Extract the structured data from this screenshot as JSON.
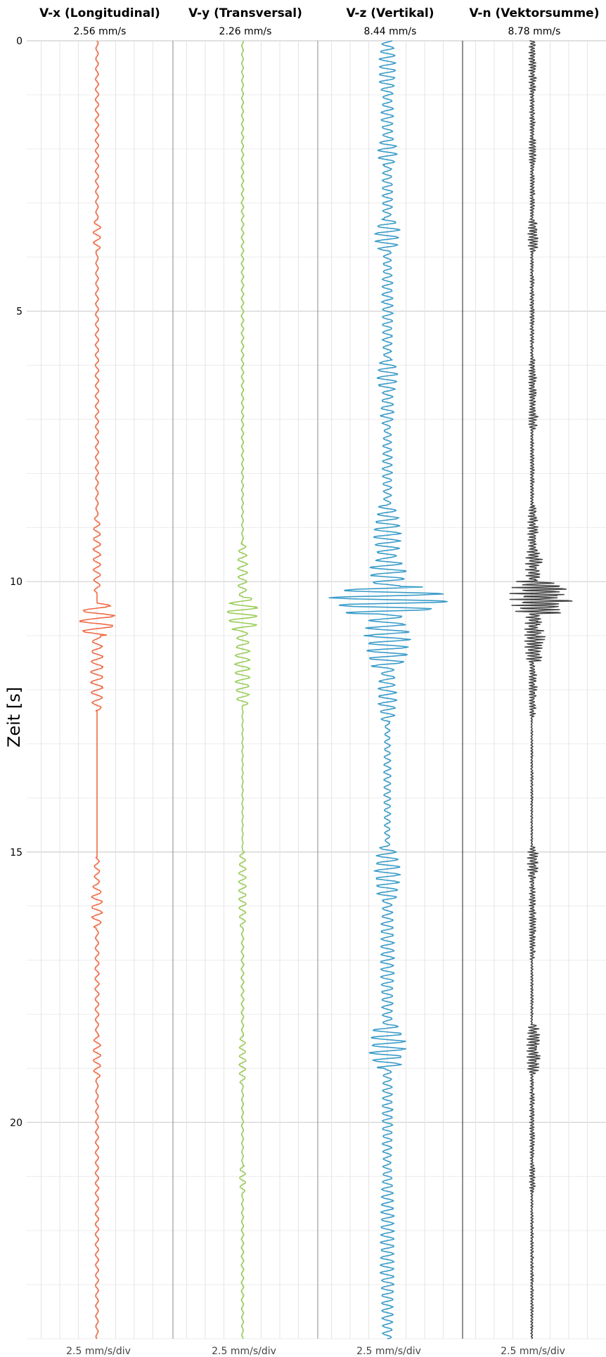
{
  "chart_data": {
    "type": "line",
    "ylabel": "Zeit [s]",
    "y_ticks": [
      "0",
      "5",
      "10",
      "15",
      "20"
    ],
    "ylim": [
      0,
      24
    ],
    "y_direction": "down",
    "grid": true,
    "scale_per_div": 2.5,
    "panels": [
      {
        "title": "V-x (Longitudinal)",
        "peak_label": "2.56 mm/s",
        "peak": 2.56,
        "scale_label": "2.5 mm/s/div",
        "color": "#f06a45",
        "signed": true,
        "baseline": 0.9,
        "bursts": [
          {
            "t": 0.0,
            "amp": 0.25,
            "dur": 3.3
          },
          {
            "t": 3.3,
            "amp": 0.55,
            "dur": 0.6
          },
          {
            "t": 3.9,
            "amp": 0.25,
            "dur": 4.9
          },
          {
            "t": 8.8,
            "amp": 0.55,
            "dur": 1.4
          },
          {
            "t": 10.4,
            "amp": 2.56,
            "dur": 0.6
          },
          {
            "t": 11.0,
            "amp": 0.9,
            "dur": 1.4
          },
          {
            "t": 15.1,
            "amp": 0.4,
            "dur": 0.6
          },
          {
            "t": 15.6,
            "amp": 0.8,
            "dur": 0.8
          },
          {
            "t": 16.4,
            "amp": 0.3,
            "dur": 2.0
          },
          {
            "t": 18.4,
            "amp": 0.55,
            "dur": 0.8
          },
          {
            "t": 19.2,
            "amp": 0.25,
            "dur": 4.8
          }
        ]
      },
      {
        "title": "V-y (Transversal)",
        "peak_label": "2.26 mm/s",
        "peak": 2.26,
        "scale_label": "2.5 mm/s/div",
        "color": "#9acd5a",
        "signed": true,
        "baseline": 0.9,
        "bursts": [
          {
            "t": 0.0,
            "amp": 0.18,
            "dur": 9.3
          },
          {
            "t": 9.3,
            "amp": 0.7,
            "dur": 1.0
          },
          {
            "t": 10.3,
            "amp": 2.26,
            "dur": 0.6
          },
          {
            "t": 10.9,
            "amp": 1.1,
            "dur": 1.4
          },
          {
            "t": 12.3,
            "amp": 0.1,
            "dur": 2.7
          },
          {
            "t": 15.0,
            "amp": 0.55,
            "dur": 1.4
          },
          {
            "t": 16.4,
            "amp": 0.2,
            "dur": 2.0
          },
          {
            "t": 18.4,
            "amp": 0.5,
            "dur": 0.9
          },
          {
            "t": 19.3,
            "amp": 0.15,
            "dur": 1.5
          },
          {
            "t": 20.8,
            "amp": 0.45,
            "dur": 0.5
          },
          {
            "t": 21.3,
            "amp": 0.18,
            "dur": 2.7
          }
        ]
      },
      {
        "title": "V-z (Vertikal)",
        "peak_label": "8.44 mm/s",
        "peak": 8.44,
        "scale_label": "2.5 mm/s/div",
        "color": "#3a9cc9",
        "signed": true,
        "baseline": 0.9,
        "bursts": [
          {
            "t": 0.0,
            "amp": 1.2,
            "dur": 1.0
          },
          {
            "t": 1.0,
            "amp": 0.9,
            "dur": 0.8
          },
          {
            "t": 1.8,
            "amp": 1.4,
            "dur": 0.5
          },
          {
            "t": 2.3,
            "amp": 0.8,
            "dur": 1.0
          },
          {
            "t": 3.3,
            "amp": 1.8,
            "dur": 0.6
          },
          {
            "t": 3.9,
            "amp": 0.8,
            "dur": 2.0
          },
          {
            "t": 5.9,
            "amp": 1.5,
            "dur": 0.6
          },
          {
            "t": 6.5,
            "amp": 1.0,
            "dur": 0.6
          },
          {
            "t": 7.1,
            "amp": 0.7,
            "dur": 1.5
          },
          {
            "t": 8.6,
            "amp": 1.9,
            "dur": 1.0
          },
          {
            "t": 9.6,
            "amp": 2.7,
            "dur": 0.5
          },
          {
            "t": 10.1,
            "amp": 8.44,
            "dur": 0.5
          },
          {
            "t": 10.6,
            "amp": 3.2,
            "dur": 1.0
          },
          {
            "t": 11.6,
            "amp": 1.3,
            "dur": 1.0
          },
          {
            "t": 12.6,
            "amp": 0.5,
            "dur": 2.3
          },
          {
            "t": 14.9,
            "amp": 1.8,
            "dur": 1.0
          },
          {
            "t": 15.9,
            "amp": 1.0,
            "dur": 2.3
          },
          {
            "t": 18.2,
            "amp": 2.6,
            "dur": 0.8
          },
          {
            "t": 19.0,
            "amp": 0.8,
            "dur": 1.8
          },
          {
            "t": 20.8,
            "amp": 1.0,
            "dur": 3.2
          }
        ]
      },
      {
        "title": "V-n (Vektorsumme)",
        "peak_label": "8.78 mm/s",
        "peak": 8.78,
        "scale_label": "2.5 mm/s/div",
        "color": "#444444",
        "signed": false,
        "baseline": 0.55,
        "bursts": [
          {
            "t": 0.0,
            "amp": 1.1,
            "dur": 1.0
          },
          {
            "t": 1.0,
            "amp": 0.8,
            "dur": 0.8
          },
          {
            "t": 1.8,
            "amp": 1.3,
            "dur": 0.5
          },
          {
            "t": 2.3,
            "amp": 0.7,
            "dur": 1.0
          },
          {
            "t": 3.3,
            "amp": 1.6,
            "dur": 0.6
          },
          {
            "t": 3.9,
            "amp": 0.6,
            "dur": 2.0
          },
          {
            "t": 5.9,
            "amp": 1.2,
            "dur": 0.9
          },
          {
            "t": 6.8,
            "amp": 1.4,
            "dur": 0.4
          },
          {
            "t": 7.2,
            "amp": 0.6,
            "dur": 1.4
          },
          {
            "t": 8.6,
            "amp": 1.6,
            "dur": 0.8
          },
          {
            "t": 9.4,
            "amp": 2.4,
            "dur": 0.6
          },
          {
            "t": 10.0,
            "amp": 8.78,
            "dur": 0.6
          },
          {
            "t": 10.6,
            "amp": 3.0,
            "dur": 0.9
          },
          {
            "t": 11.5,
            "amp": 1.2,
            "dur": 1.0
          },
          {
            "t": 12.5,
            "amp": 0.35,
            "dur": 2.4
          },
          {
            "t": 14.9,
            "amp": 1.6,
            "dur": 0.6
          },
          {
            "t": 15.5,
            "amp": 1.0,
            "dur": 1.5
          },
          {
            "t": 17.0,
            "amp": 0.4,
            "dur": 1.2
          },
          {
            "t": 18.2,
            "amp": 2.1,
            "dur": 0.9
          },
          {
            "t": 19.1,
            "amp": 0.7,
            "dur": 1.7
          },
          {
            "t": 20.8,
            "amp": 0.9,
            "dur": 0.5
          },
          {
            "t": 21.3,
            "amp": 0.45,
            "dur": 2.7
          }
        ]
      }
    ]
  }
}
